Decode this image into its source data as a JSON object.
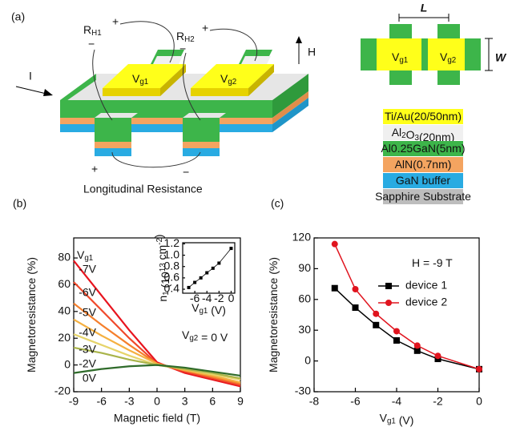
{
  "schematic": {
    "panel_label": "(a)",
    "current": "I",
    "field": "H",
    "plus": "+",
    "minus": "−",
    "r_h1": [
      "R",
      {
        "sub": "H1"
      }
    ],
    "r_h2": [
      "R",
      {
        "sub": "H2"
      }
    ],
    "gate_1": [
      "V",
      {
        "sub": "g1"
      }
    ],
    "gate_2": [
      "V",
      {
        "sub": "g2"
      }
    ],
    "longitudinal": "Longitudinal Resistance",
    "top_view": {
      "length": "L",
      "width": "W",
      "gate_1": [
        "V",
        {
          "sub": "g1"
        }
      ],
      "gate_2": [
        "V",
        {
          "sub": "g2"
        }
      ]
    },
    "layers": [
      {
        "name": [
          "Ti/Au(20/50nm)"
        ],
        "color": "#ffff1a"
      },
      {
        "name": [
          "Al",
          {
            "sub": "2"
          },
          "O",
          {
            "sub": "3"
          },
          "(20nm)"
        ],
        "color": "#f0f0f0"
      },
      {
        "name": [
          "Al0.25GaN(5nm)"
        ],
        "color": "#3db54a"
      },
      {
        "name": [
          "AlN(0.7nm)"
        ],
        "color": "#f4a460"
      },
      {
        "name": [
          "GaN buffer"
        ],
        "color": "#29abe2"
      },
      {
        "name": [
          "Sapphire Substrate"
        ],
        "color": "#bdbdbd"
      }
    ]
  },
  "chart_data": [
    {
      "type": "line",
      "panel_label": "(b)",
      "x_label": [
        "Magnetic field (T)"
      ],
      "y_label": [
        "Magnetoresistance (%)"
      ],
      "legend_title": [
        "V",
        {
          "sub": "g1"
        }
      ],
      "annotation": [
        "V",
        {
          "sub": "g2"
        },
        " = 0 V"
      ],
      "x": [
        -9,
        -6,
        -3,
        0,
        3,
        6,
        9
      ],
      "xlim": [
        -9,
        9
      ],
      "xticks": [
        -9,
        -6,
        -3,
        0,
        3,
        6,
        9
      ],
      "ylim": [
        -20,
        95
      ],
      "yticks": [
        -20,
        0,
        20,
        40,
        60,
        80
      ],
      "markers": "none",
      "series": [
        {
          "name": "-7V",
          "color": "#e8141e",
          "values": [
            78,
            52,
            26,
            2,
            -6,
            -11,
            -16
          ]
        },
        {
          "name": "-6V",
          "color": "#f0482a",
          "values": [
            62,
            41,
            20,
            1,
            -5,
            -10,
            -15
          ]
        },
        {
          "name": "-5V",
          "color": "#f57f2c",
          "values": [
            46,
            30,
            15,
            1,
            -4,
            -9,
            -14
          ]
        },
        {
          "name": "-4V",
          "color": "#f5b041",
          "values": [
            34,
            22,
            11,
            1,
            -4,
            -8,
            -13
          ]
        },
        {
          "name": "-3V",
          "color": "#e6d46a",
          "values": [
            23,
            15,
            7,
            0,
            -3,
            -7,
            -11
          ]
        },
        {
          "name": "-2V",
          "color": "#a9b44a",
          "values": [
            13,
            9,
            4,
            0,
            -3,
            -6,
            -10
          ]
        },
        {
          "name": "0V",
          "color": "#2f6b2a",
          "values": [
            -6,
            -3,
            -1,
            0,
            -2,
            -5,
            -8
          ]
        }
      ]
    },
    {
      "type": "line",
      "x_label": [
        "V",
        {
          "sub": "g1"
        },
        " (V)"
      ],
      "y_label": [
        "n",
        {
          "sub": "1"
        },
        " (10",
        {
          "sup": "13"
        },
        " cm",
        {
          "sup": "-2"
        },
        ")"
      ],
      "x": [
        -7,
        -6,
        -5,
        -4,
        -3,
        -2,
        0
      ],
      "xlim": [
        -8,
        0.6
      ],
      "xticks": [
        -6,
        -4,
        -2,
        0
      ],
      "ylim": [
        0.33,
        1.22
      ],
      "yticks": [
        0.4,
        0.6,
        0.8,
        {
          "value": 1,
          "label": "1.0"
        },
        1.2
      ],
      "markers": "square",
      "series": [
        {
          "color": "#000000",
          "values": [
            0.43,
            0.52,
            0.6,
            0.69,
            0.77,
            0.86,
            1.12
          ]
        }
      ]
    },
    {
      "type": "line",
      "panel_label": "(c)",
      "x_label": [
        "V",
        {
          "sub": "g1"
        },
        " (V)"
      ],
      "y_label": [
        "Magnetoresistance (%)"
      ],
      "annotation": [
        "H = -9 T"
      ],
      "x": [
        -7,
        -6,
        -5,
        -4,
        -3,
        -2,
        0
      ],
      "xlim": [
        -8,
        0
      ],
      "xticks": [
        -8,
        -6,
        -4,
        -2,
        0
      ],
      "ylim": [
        -30,
        120
      ],
      "yticks": [
        -30,
        0,
        30,
        60,
        90,
        120
      ],
      "markers": "series",
      "series": [
        {
          "name": "device 1",
          "color": "#000000",
          "marker": "square",
          "values": [
            71,
            52,
            35,
            20,
            10,
            2,
            -8
          ]
        },
        {
          "name": "device 2",
          "color": "#e0141e",
          "marker": "circle",
          "values": [
            114,
            70,
            46,
            29,
            15,
            5,
            -8
          ]
        }
      ]
    }
  ]
}
